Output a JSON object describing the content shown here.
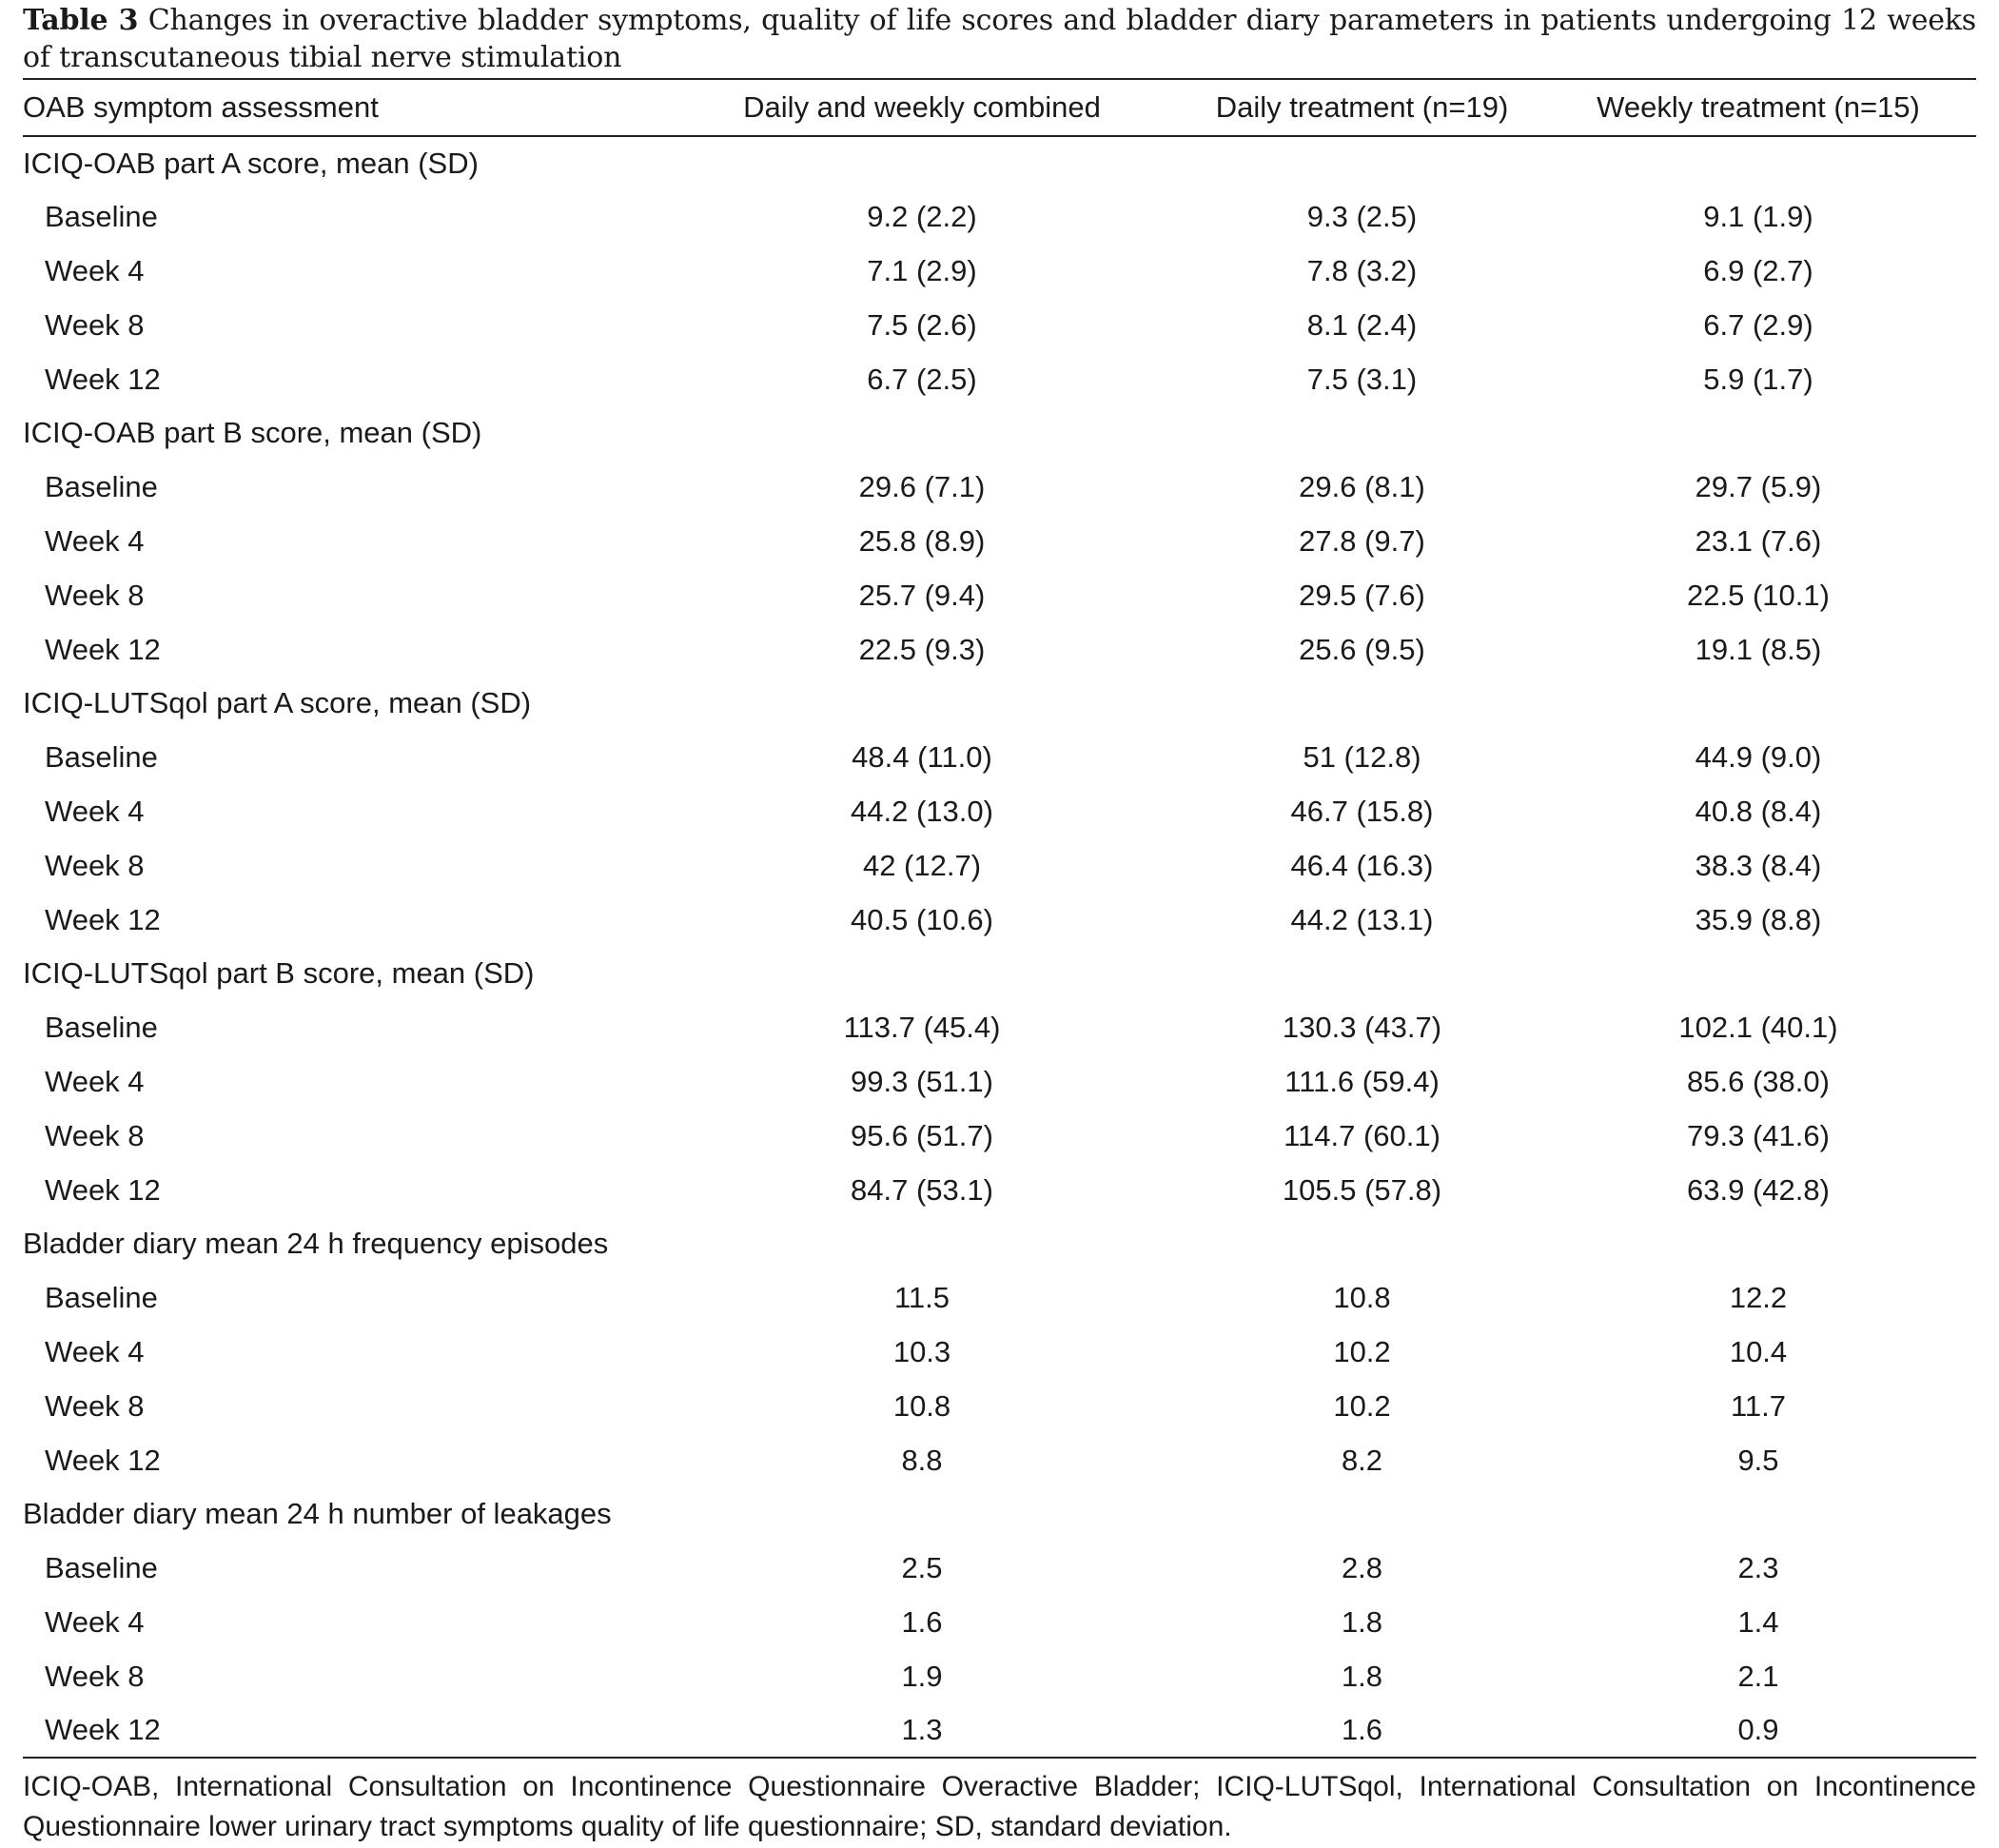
{
  "caption": {
    "label": "Table 3",
    "text": "Changes in overactive bladder symptoms, quality of life scores and bladder diary parameters in patients undergoing 12 weeks of transcutaneous tibial nerve stimulation"
  },
  "table": {
    "headers": [
      "OAB symptom assessment",
      "Daily and weekly combined",
      "Daily treatment (n=19)",
      "Weekly treatment (n=15)"
    ],
    "sections": [
      {
        "title": "ICIQ-OAB part A score, mean (SD)",
        "rows": [
          {
            "label": "Baseline",
            "values": [
              "9.2 (2.2)",
              "9.3 (2.5)",
              "9.1 (1.9)"
            ]
          },
          {
            "label": "Week 4",
            "values": [
              "7.1 (2.9)",
              "7.8 (3.2)",
              "6.9 (2.7)"
            ]
          },
          {
            "label": "Week 8",
            "values": [
              "7.5 (2.6)",
              "8.1 (2.4)",
              "6.7 (2.9)"
            ]
          },
          {
            "label": "Week 12",
            "values": [
              "6.7 (2.5)",
              "7.5 (3.1)",
              "5.9 (1.7)"
            ]
          }
        ]
      },
      {
        "title": "ICIQ-OAB part B score, mean (SD)",
        "rows": [
          {
            "label": "Baseline",
            "values": [
              "29.6 (7.1)",
              "29.6 (8.1)",
              "29.7 (5.9)"
            ]
          },
          {
            "label": "Week 4",
            "values": [
              "25.8 (8.9)",
              "27.8 (9.7)",
              "23.1 (7.6)"
            ]
          },
          {
            "label": "Week 8",
            "values": [
              "25.7 (9.4)",
              "29.5 (7.6)",
              "22.5 (10.1)"
            ]
          },
          {
            "label": "Week 12",
            "values": [
              "22.5 (9.3)",
              "25.6 (9.5)",
              "19.1 (8.5)"
            ]
          }
        ]
      },
      {
        "title": "ICIQ-LUTSqol part A score, mean (SD)",
        "rows": [
          {
            "label": "Baseline",
            "values": [
              "48.4 (11.0)",
              "51 (12.8)",
              "44.9 (9.0)"
            ]
          },
          {
            "label": "Week 4",
            "values": [
              "44.2 (13.0)",
              "46.7 (15.8)",
              "40.8 (8.4)"
            ]
          },
          {
            "label": "Week 8",
            "values": [
              "42 (12.7)",
              "46.4 (16.3)",
              "38.3 (8.4)"
            ]
          },
          {
            "label": "Week 12",
            "values": [
              "40.5 (10.6)",
              "44.2 (13.1)",
              "35.9 (8.8)"
            ]
          }
        ]
      },
      {
        "title": "ICIQ-LUTSqol part B score, mean (SD)",
        "rows": [
          {
            "label": "Baseline",
            "values": [
              "113.7 (45.4)",
              "130.3 (43.7)",
              "102.1 (40.1)"
            ]
          },
          {
            "label": "Week 4",
            "values": [
              "99.3 (51.1)",
              "111.6 (59.4)",
              "85.6 (38.0)"
            ]
          },
          {
            "label": "Week 8",
            "values": [
              "95.6 (51.7)",
              "114.7 (60.1)",
              "79.3 (41.6)"
            ]
          },
          {
            "label": "Week 12",
            "values": [
              "84.7 (53.1)",
              "105.5 (57.8)",
              "63.9 (42.8)"
            ]
          }
        ]
      },
      {
        "title": "Bladder diary mean 24 h frequency episodes",
        "rows": [
          {
            "label": "Baseline",
            "values": [
              "11.5",
              "10.8",
              "12.2"
            ]
          },
          {
            "label": "Week 4",
            "values": [
              "10.3",
              "10.2",
              "10.4"
            ]
          },
          {
            "label": "Week 8",
            "values": [
              "10.8",
              "10.2",
              "11.7"
            ]
          },
          {
            "label": "Week 12",
            "values": [
              "8.8",
              "8.2",
              "9.5"
            ]
          }
        ]
      },
      {
        "title": "Bladder diary mean 24 h number of leakages",
        "rows": [
          {
            "label": "Baseline",
            "values": [
              "2.5",
              "2.8",
              "2.3"
            ]
          },
          {
            "label": "Week 4",
            "values": [
              "1.6",
              "1.8",
              "1.4"
            ]
          },
          {
            "label": "Week 8",
            "values": [
              "1.9",
              "1.8",
              "2.1"
            ]
          },
          {
            "label": "Week 12",
            "values": [
              "1.3",
              "1.6",
              "0.9"
            ]
          }
        ]
      }
    ]
  },
  "footnote": "ICIQ-OAB, International Consultation on Incontinence Questionnaire Overactive Bladder; ICIQ-LUTSqol, International Consultation on Incontinence Questionnaire lower urinary tract symptoms quality of life questionnaire; SD, standard deviation."
}
